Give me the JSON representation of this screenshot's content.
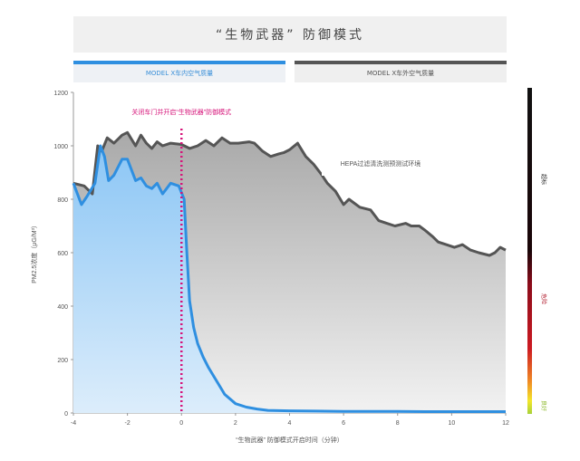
{
  "title": "“生物武器” 防御模式",
  "legend": {
    "inside": "MODEL X车内空气质量",
    "outside": "MODEL X车外空气质量"
  },
  "annotations": {
    "door_closed": "关闭车门并开启“生物武器”防御模式",
    "hepa": "HEPA过滤清洗测预测试环境"
  },
  "aqi_labels": {
    "top": "超标",
    "mid": "危险",
    "bottom": "良好"
  },
  "colors": {
    "inside": "#2f8fe0",
    "outside": "#555555",
    "marker": "#d6147a"
  },
  "chart_data": {
    "type": "area",
    "title": "“生物武器” 防御模式",
    "xlabel": "“生物武器” 防御模式开启时间（分钟）",
    "ylabel": "PM2.5浓度（μG/M³）",
    "xlim": [
      -4,
      12
    ],
    "ylim": [
      0,
      1200
    ],
    "xticks": [
      -4,
      -2,
      0,
      2,
      4,
      6,
      8,
      10,
      12
    ],
    "yticks": [
      0,
      200,
      400,
      600,
      800,
      1000,
      1200
    ],
    "xtick_labels": [
      "-4",
      "-2",
      "0",
      "2",
      "4",
      "6",
      "8",
      "10",
      "12"
    ],
    "ytick_labels": [
      "0",
      "200",
      "400",
      "600",
      "800",
      "1000",
      "1200"
    ],
    "vline_x": 0,
    "series": [
      {
        "name": "MODEL X车外空气质量",
        "x": [
          -4,
          -3.6,
          -3.3,
          -3.1,
          -2.95,
          -2.75,
          -2.5,
          -2.2,
          -2,
          -1.7,
          -1.5,
          -1.3,
          -1.1,
          -0.9,
          -0.7,
          -0.4,
          0,
          0.3,
          0.6,
          0.9,
          1.2,
          1.5,
          1.8,
          2.1,
          2.5,
          2.7,
          3,
          3.3,
          3.6,
          3.8,
          4,
          4.3,
          4.6,
          4.9,
          5.2,
          5.4,
          5.7,
          6,
          6.2,
          6.6,
          7,
          7.3,
          7.6,
          7.9,
          8.3,
          8.5,
          8.8,
          9,
          9.3,
          9.5,
          9.8,
          10.1,
          10.4,
          10.7,
          11,
          11.4,
          11.6,
          11.8,
          12
        ],
        "values": [
          860,
          850,
          820,
          1000,
          980,
          1030,
          1010,
          1040,
          1050,
          1000,
          1040,
          1010,
          990,
          1015,
          1000,
          1010,
          1005,
          990,
          1000,
          1020,
          1000,
          1030,
          1010,
          1010,
          1015,
          1010,
          980,
          960,
          970,
          975,
          985,
          1010,
          960,
          930,
          890,
          860,
          830,
          780,
          800,
          770,
          760,
          720,
          710,
          700,
          710,
          700,
          700,
          685,
          660,
          640,
          630,
          620,
          630,
          610,
          600,
          590,
          600,
          620,
          610
        ]
      },
      {
        "name": "MODEL X车内空气质量",
        "x": [
          -4,
          -3.7,
          -3.5,
          -3.2,
          -3,
          -2.85,
          -2.7,
          -2.5,
          -2.2,
          -2,
          -1.7,
          -1.5,
          -1.3,
          -1.1,
          -0.9,
          -0.7,
          -0.4,
          -0.1,
          0.1,
          0.2,
          0.3,
          0.45,
          0.6,
          0.8,
          1,
          1.3,
          1.6,
          2,
          2.4,
          2.8,
          3.2,
          4,
          5,
          6,
          7,
          8,
          9,
          10,
          11,
          12
        ],
        "values": [
          860,
          780,
          810,
          860,
          1000,
          960,
          870,
          890,
          950,
          950,
          870,
          880,
          850,
          840,
          860,
          820,
          860,
          850,
          800,
          600,
          420,
          320,
          260,
          210,
          170,
          120,
          70,
          35,
          22,
          15,
          10,
          8,
          7,
          6,
          6,
          6,
          5,
          5,
          5,
          5
        ]
      }
    ]
  }
}
